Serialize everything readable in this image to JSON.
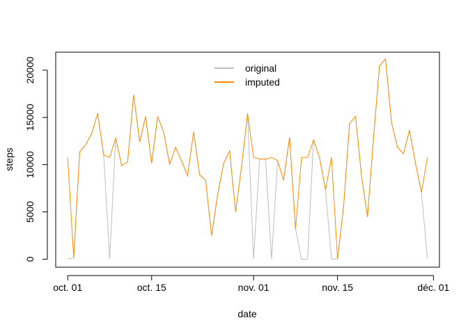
{
  "chart_data": {
    "type": "line",
    "xlabel": "date",
    "ylabel": "steps",
    "x": [
      "2012-10-01",
      "2012-10-02",
      "2012-10-03",
      "2012-10-04",
      "2012-10-05",
      "2012-10-06",
      "2012-10-07",
      "2012-10-08",
      "2012-10-09",
      "2012-10-10",
      "2012-10-11",
      "2012-10-12",
      "2012-10-13",
      "2012-10-14",
      "2012-10-15",
      "2012-10-16",
      "2012-10-17",
      "2012-10-18",
      "2012-10-19",
      "2012-10-20",
      "2012-10-21",
      "2012-10-22",
      "2012-10-23",
      "2012-10-24",
      "2012-10-25",
      "2012-10-26",
      "2012-10-27",
      "2012-10-28",
      "2012-10-29",
      "2012-10-30",
      "2012-10-31",
      "2012-11-01",
      "2012-11-02",
      "2012-11-03",
      "2012-11-04",
      "2012-11-05",
      "2012-11-06",
      "2012-11-07",
      "2012-11-08",
      "2012-11-09",
      "2012-11-10",
      "2012-11-11",
      "2012-11-12",
      "2012-11-13",
      "2012-11-14",
      "2012-11-15",
      "2012-11-16",
      "2012-11-17",
      "2012-11-18",
      "2012-11-19",
      "2012-11-20",
      "2012-11-21",
      "2012-11-22",
      "2012-11-23",
      "2012-11-24",
      "2012-11-25",
      "2012-11-26",
      "2012-11-27",
      "2012-11-28",
      "2012-11-29",
      "2012-11-30"
    ],
    "series": [
      {
        "name": "original",
        "color": "#bebebe",
        "values": [
          0,
          126,
          11352,
          12116,
          13294,
          15420,
          11015,
          0,
          12811,
          9900,
          10304,
          17382,
          12426,
          15098,
          10139,
          15084,
          13452,
          10056,
          11829,
          10395,
          8821,
          13460,
          8918,
          8355,
          2492,
          6778,
          10119,
          11458,
          5018,
          9819,
          15414,
          0,
          10600,
          10571,
          0,
          10439,
          8334,
          12883,
          3219,
          0,
          0,
          12608,
          10765,
          7336,
          0,
          41,
          5441,
          14339,
          15110,
          8841,
          4472,
          12787,
          20427,
          21194,
          14478,
          11834,
          11162,
          13646,
          10183,
          7047,
          0
        ]
      },
      {
        "name": "imputed",
        "color": "#ff8c00",
        "values": [
          10766,
          126,
          11352,
          12116,
          13294,
          15420,
          11015,
          10766,
          12811,
          9900,
          10304,
          17382,
          12426,
          15098,
          10139,
          15084,
          13452,
          10056,
          11829,
          10395,
          8821,
          13460,
          8918,
          8355,
          2492,
          6778,
          10119,
          11458,
          5018,
          9819,
          15414,
          10766,
          10600,
          10571,
          10766,
          10439,
          8334,
          12883,
          3219,
          10766,
          10766,
          12608,
          10765,
          7336,
          10766,
          41,
          5441,
          14339,
          15110,
          8841,
          4472,
          12787,
          20427,
          21194,
          14478,
          11834,
          11162,
          13646,
          10183,
          7047,
          10766
        ]
      }
    ],
    "x_ticks": [
      {
        "date": "2012-10-01",
        "label": "oct. 01"
      },
      {
        "date": "2012-10-15",
        "label": "oct. 15"
      },
      {
        "date": "2012-11-01",
        "label": "nov. 01"
      },
      {
        "date": "2012-11-15",
        "label": "nov. 15"
      },
      {
        "date": "2012-12-01",
        "label": "déc. 01"
      }
    ],
    "y_ticks": [
      0,
      5000,
      10000,
      15000,
      20000
    ],
    "xlim": [
      "2012-09-29",
      "2012-12-02"
    ],
    "ylim": [
      -850,
      21900
    ],
    "legend_position": "top-center",
    "grid": false
  }
}
